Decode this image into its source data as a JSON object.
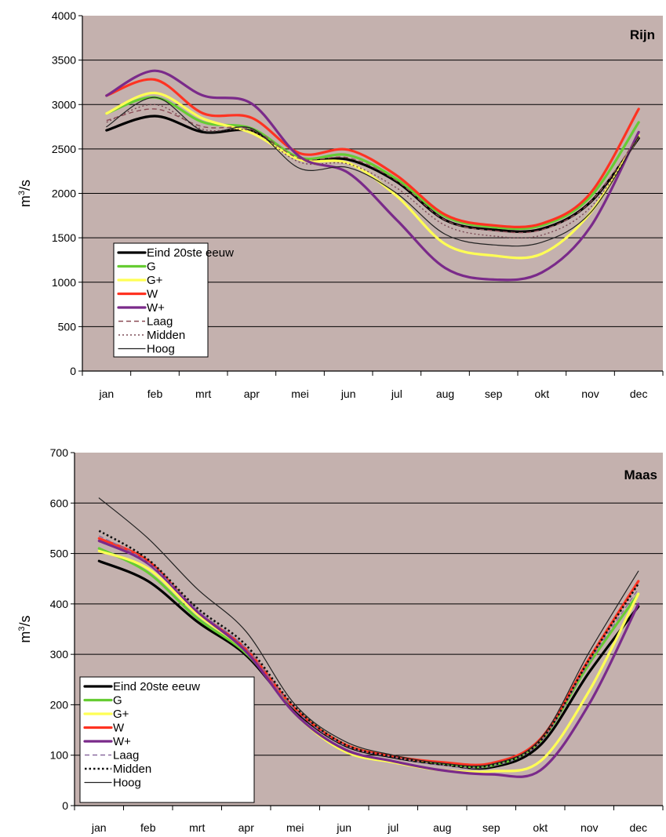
{
  "chart_data": [
    {
      "type": "line",
      "title": "Rijn",
      "ylabel_base": "m",
      "ylabel_sup": "3",
      "ylabel_rest": "/s",
      "ylim": [
        0,
        4000
      ],
      "yticks": [
        "0",
        "500",
        "1000",
        "1500",
        "2000",
        "2500",
        "3000",
        "3500",
        "4000"
      ],
      "categories": [
        "jan",
        "feb",
        "mrt",
        "apr",
        "mei",
        "jun",
        "jul",
        "aug",
        "sep",
        "okt",
        "nov",
        "dec"
      ],
      "grid": true,
      "legend_position": "bottom-left",
      "series": [
        {
          "name": "Eind 20ste eeuw",
          "color": "#000000",
          "style": "solid-thick",
          "values": [
            2710,
            2870,
            2690,
            2700,
            2390,
            2380,
            2130,
            1700,
            1590,
            1600,
            1900,
            2620
          ]
        },
        {
          "name": "G",
          "color": "#66cc33",
          "style": "solid-thick",
          "values": [
            2900,
            3080,
            2800,
            2730,
            2400,
            2430,
            2160,
            1740,
            1620,
            1640,
            1960,
            2800
          ]
        },
        {
          "name": "G+",
          "color": "#ffff55",
          "style": "solid-thick",
          "values": [
            2900,
            3130,
            2840,
            2680,
            2380,
            2340,
            1970,
            1430,
            1300,
            1320,
            1780,
            2650
          ]
        },
        {
          "name": "W",
          "color": "#ff3322",
          "style": "solid-thick",
          "values": [
            3100,
            3280,
            2900,
            2850,
            2450,
            2490,
            2200,
            1760,
            1640,
            1660,
            2000,
            2950
          ]
        },
        {
          "name": "W+",
          "color": "#7a2a8a",
          "style": "solid-thick",
          "values": [
            3100,
            3380,
            3100,
            3010,
            2410,
            2230,
            1700,
            1160,
            1030,
            1110,
            1620,
            2690
          ]
        },
        {
          "name": "Laag",
          "color": "#8a4a55",
          "style": "dashed",
          "values": [
            2820,
            2950,
            2750,
            2720,
            2390,
            2400,
            2140,
            1700,
            1580,
            1590,
            1900,
            2650
          ]
        },
        {
          "name": "Midden",
          "color": "#7a4a55",
          "style": "dotted",
          "values": [
            2800,
            3000,
            2720,
            2700,
            2350,
            2330,
            2060,
            1640,
            1520,
            1530,
            1840,
            2620
          ]
        },
        {
          "name": "Hoog",
          "color": "#222222",
          "style": "solid-thin",
          "values": [
            2750,
            3080,
            2700,
            2730,
            2280,
            2290,
            2000,
            1540,
            1420,
            1450,
            1780,
            2640
          ]
        }
      ]
    },
    {
      "type": "line",
      "title": "Maas",
      "ylabel_base": "m",
      "ylabel_sup": "3",
      "ylabel_rest": "/s",
      "ylim": [
        0,
        700
      ],
      "yticks": [
        "0",
        "100",
        "200",
        "300",
        "400",
        "500",
        "600",
        "700"
      ],
      "categories": [
        "jan",
        "feb",
        "mrt",
        "apr",
        "mei",
        "jun",
        "jul",
        "aug",
        "sep",
        "okt",
        "nov",
        "dec"
      ],
      "grid": true,
      "legend_position": "bottom-left",
      "series": [
        {
          "name": "Eind 20ste eeuw",
          "color": "#000000",
          "style": "solid-thick",
          "values": [
            485,
            445,
            365,
            298,
            188,
            120,
            96,
            82,
            76,
            120,
            265,
            395
          ]
        },
        {
          "name": "G",
          "color": "#66cc33",
          "style": "solid-thick",
          "values": [
            510,
            462,
            372,
            302,
            192,
            122,
            98,
            84,
            79,
            128,
            282,
            420
          ]
        },
        {
          "name": "G+",
          "color": "#ffff55",
          "style": "solid-thick",
          "values": [
            505,
            470,
            380,
            305,
            182,
            108,
            86,
            70,
            68,
            88,
            228,
            420
          ]
        },
        {
          "name": "W",
          "color": "#ff3322",
          "style": "solid-thick",
          "values": [
            530,
            485,
            385,
            310,
            192,
            122,
            98,
            86,
            84,
            132,
            292,
            445
          ]
        },
        {
          "name": "W+",
          "color": "#7a2a8a",
          "style": "solid-thick",
          "values": [
            525,
            480,
            385,
            305,
            182,
            112,
            88,
            70,
            62,
            70,
            202,
            400
          ]
        },
        {
          "name": "Laag",
          "color": "#8a6aa0",
          "style": "dashed",
          "values": [
            535,
            482,
            388,
            312,
            190,
            120,
            96,
            80,
            78,
            126,
            285,
            430
          ]
        },
        {
          "name": "Midden",
          "color": "#111111",
          "style": "dotted-thick",
          "values": [
            545,
            488,
            392,
            318,
            195,
            122,
            97,
            82,
            80,
            128,
            290,
            440
          ]
        },
        {
          "name": "Hoog",
          "color": "#222222",
          "style": "solid-thin",
          "values": [
            610,
            530,
            430,
            345,
            200,
            128,
            100,
            84,
            82,
            132,
            305,
            465
          ]
        }
      ]
    }
  ]
}
